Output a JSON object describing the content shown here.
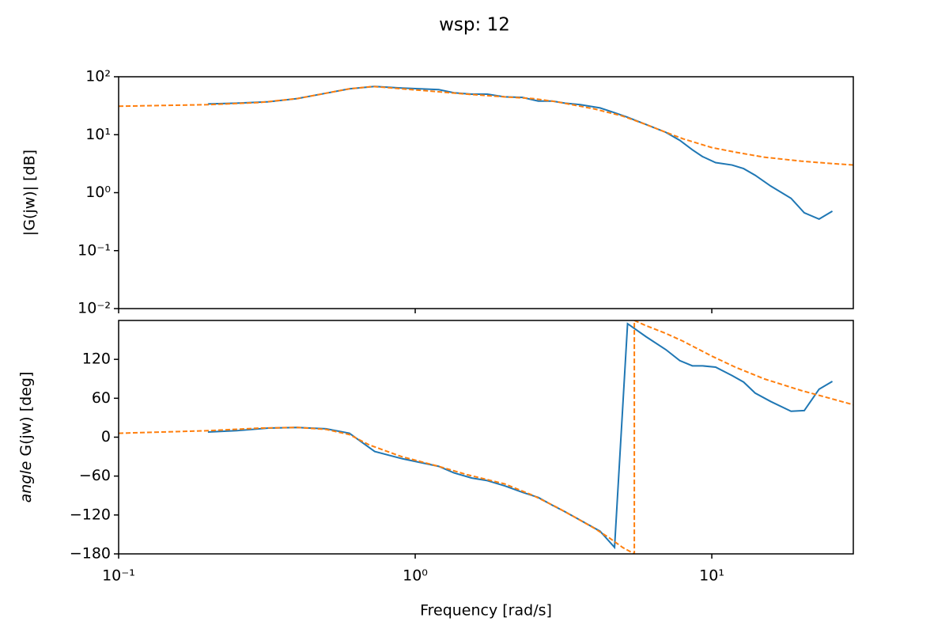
{
  "title": "wsp: 12",
  "chart_data": [
    {
      "type": "line",
      "ylabel": "|G(jw)| [dB]",
      "ylog": true,
      "xlim": [
        0.1,
        30
      ],
      "ylim": [
        0.01,
        100
      ],
      "yticks": [
        {
          "value": 0.01,
          "label": "10⁻²"
        },
        {
          "value": 0.1,
          "label": "10⁻¹"
        },
        {
          "value": 1,
          "label": "10⁰"
        },
        {
          "value": 10,
          "label": "10¹"
        },
        {
          "value": 100,
          "label": "10²"
        }
      ],
      "series": [
        {
          "color": "#1f77b4",
          "linestyle": "solid",
          "x": [
            0.2,
            0.25,
            0.32,
            0.4,
            0.5,
            0.6,
            0.73,
            0.9,
            1.2,
            1.35,
            1.55,
            1.75,
            2.0,
            2.3,
            2.6,
            2.9,
            3.2,
            3.6,
            4.2,
            4.7,
            5.2,
            6.0,
            7.0,
            7.8,
            8.6,
            9.3,
            10.3,
            11.7,
            12.8,
            14.0,
            15.8,
            18.5,
            20.5,
            23.0,
            25.5
          ],
          "values": [
            34,
            35,
            37,
            42,
            52,
            62,
            68,
            64,
            60,
            53,
            50,
            50,
            45,
            44,
            38,
            38,
            35,
            33,
            29,
            24,
            20,
            15,
            11,
            8,
            5.5,
            4.2,
            3.3,
            3.0,
            2.6,
            2.0,
            1.3,
            0.8,
            0.45,
            0.35,
            0.48
          ]
        },
        {
          "color": "#ff7f0e",
          "linestyle": "dashed",
          "x": [
            0.1,
            0.2,
            0.3,
            0.4,
            0.5,
            0.6,
            0.72,
            0.9,
            1.2,
            1.5,
            2,
            2.5,
            3,
            4,
            5,
            6,
            7,
            8,
            10,
            12,
            15,
            20,
            25,
            30
          ],
          "values": [
            31,
            33,
            36,
            42,
            52,
            62,
            68,
            62,
            55,
            50,
            45,
            42,
            37,
            28,
            21,
            15,
            11,
            8.5,
            6.0,
            5.0,
            4.1,
            3.5,
            3.2,
            3.0
          ]
        }
      ]
    },
    {
      "type": "line",
      "ylabel": [
        "angle",
        "G(jw) [deg]"
      ],
      "xlabel": "Frequency [rad/s]",
      "ylog": false,
      "xlim": [
        0.1,
        30
      ],
      "ylim": [
        -180,
        180
      ],
      "xticks": [
        {
          "value": 0.1,
          "label": "10⁻¹"
        },
        {
          "value": 1,
          "label": "10⁰"
        },
        {
          "value": 10,
          "label": "10¹"
        }
      ],
      "yticks": [
        {
          "value": -180,
          "label": "−180"
        },
        {
          "value": -120,
          "label": "−120"
        },
        {
          "value": -60,
          "label": "−60"
        },
        0,
        60,
        120
      ],
      "series": [
        {
          "color": "#1f77b4",
          "linestyle": "solid",
          "x": [
            0.2,
            0.25,
            0.32,
            0.4,
            0.5,
            0.6,
            0.73,
            0.9,
            1.2,
            1.35,
            1.55,
            1.75,
            2.0,
            2.3,
            2.6,
            2.9,
            3.2,
            3.6,
            4.2,
            4.7,
            5.2,
            6.0,
            7.0,
            7.8,
            8.6,
            9.3,
            10.3,
            11.7,
            12.8,
            14.0,
            15.8,
            18.5,
            20.5,
            23.0,
            25.5
          ],
          "values": [
            8,
            10,
            14,
            15,
            13,
            6,
            -22,
            -33,
            -45,
            -55,
            -63,
            -67,
            -75,
            -85,
            -93,
            -105,
            -115,
            -128,
            -145,
            -170,
            175,
            155,
            135,
            118,
            110,
            110,
            108,
            95,
            85,
            68,
            55,
            40,
            41,
            74,
            86
          ]
        },
        {
          "color": "#ff7f0e",
          "linestyle": "dashed",
          "x": [
            0.1,
            0.2,
            0.3,
            0.4,
            0.5,
            0.6,
            0.7,
            0.9,
            1.2,
            1.5,
            2,
            2.5,
            3,
            3.5,
            4,
            4.5,
            5,
            5.48,
            5.48,
            6,
            7,
            8,
            10,
            12,
            15,
            20,
            25,
            30
          ],
          "values": [
            6,
            10,
            14,
            15,
            12,
            4,
            -12,
            -30,
            -45,
            -58,
            -72,
            -90,
            -108,
            -125,
            -140,
            -155,
            -170,
            -180,
            180,
            172,
            160,
            148,
            125,
            108,
            90,
            72,
            60,
            50
          ]
        }
      ]
    }
  ]
}
